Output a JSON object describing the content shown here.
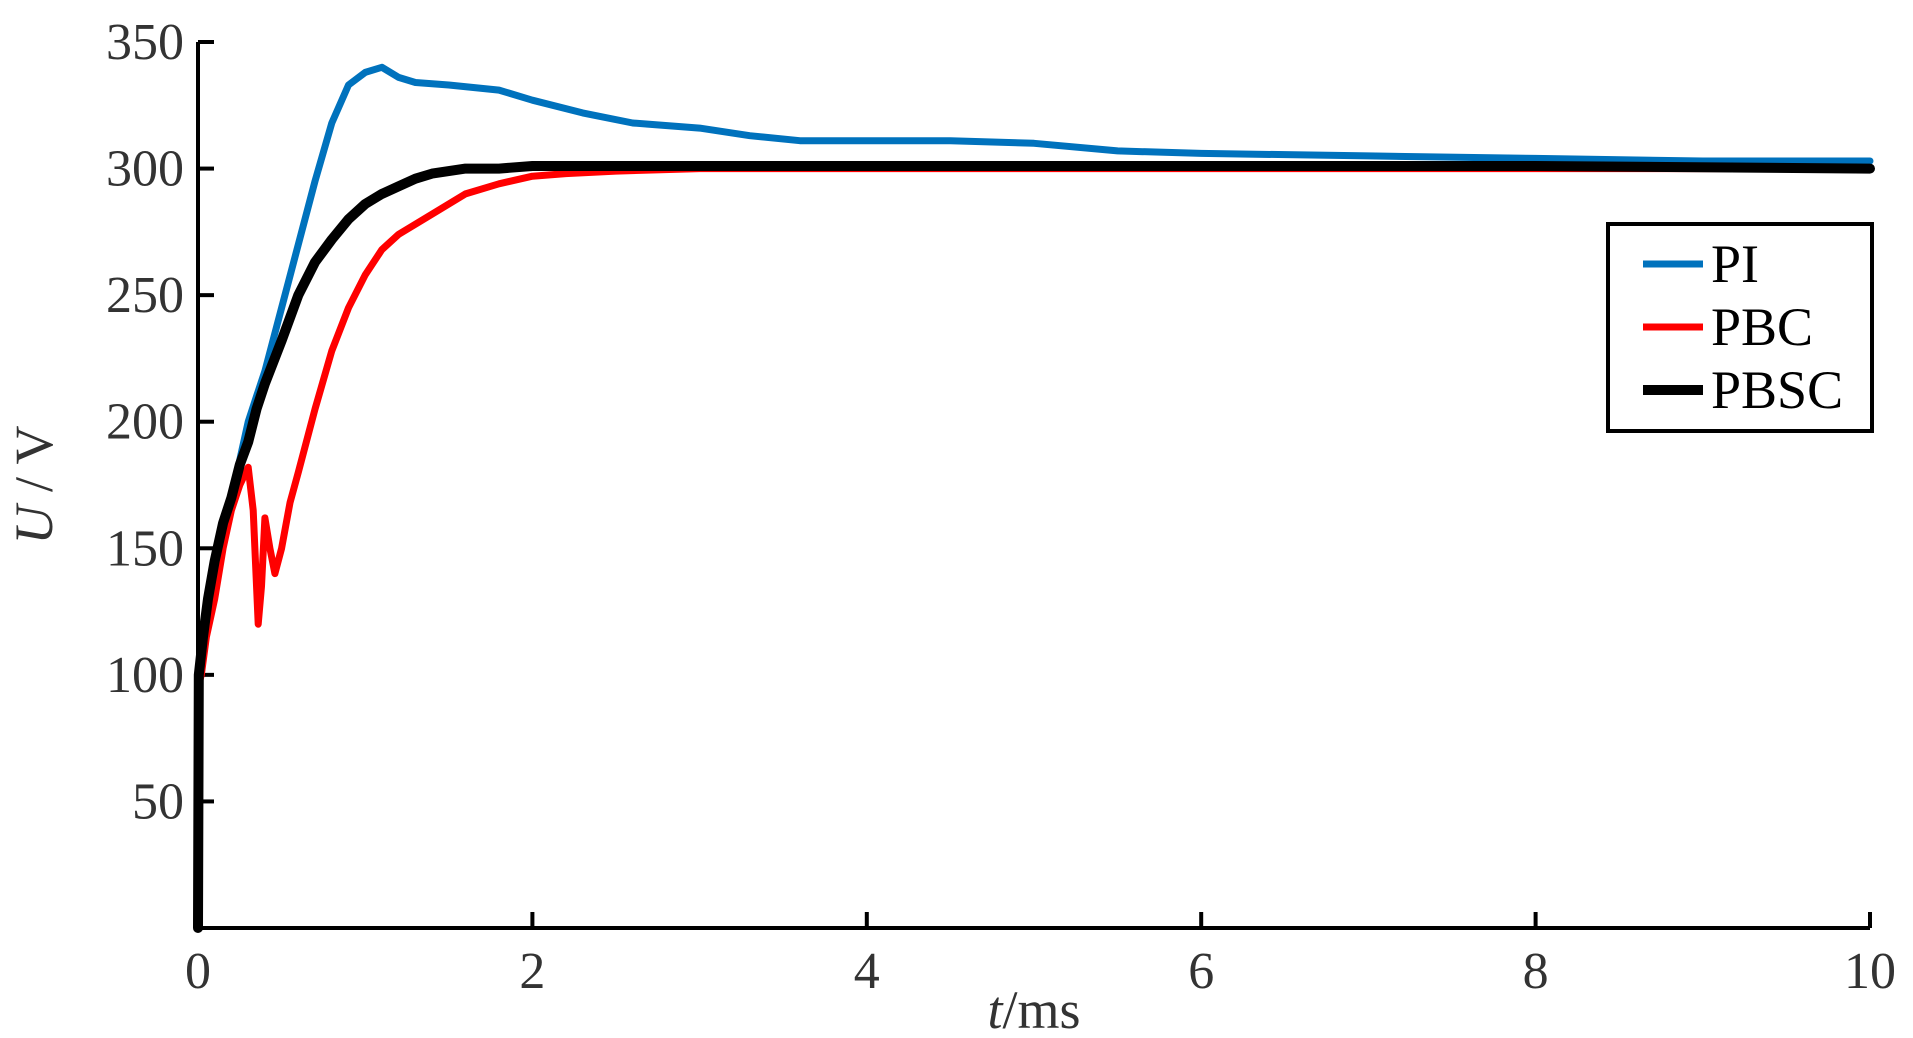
{
  "chart_data": {
    "type": "line",
    "title": "",
    "xlabel": {
      "var": "t",
      "unit": "/ms"
    },
    "ylabel": {
      "var": "U",
      "unit": " / V"
    },
    "xlim": [
      0,
      10
    ],
    "ylim": [
      0,
      350
    ],
    "xticks": [
      0,
      2,
      4,
      6,
      8,
      10
    ],
    "yticks": [
      50,
      100,
      150,
      200,
      250,
      300,
      350
    ],
    "grid": false,
    "legend_position": "right",
    "series": [
      {
        "name": "PI",
        "color": "#0072BD",
        "x": [
          0,
          0.02,
          0.05,
          0.1,
          0.15,
          0.2,
          0.25,
          0.3,
          0.35,
          0.4,
          0.5,
          0.6,
          0.7,
          0.8,
          0.9,
          1.0,
          1.1,
          1.2,
          1.3,
          1.5,
          1.8,
          2.0,
          2.3,
          2.6,
          3.0,
          3.3,
          3.6,
          4.0,
          4.5,
          5.0,
          5.5,
          6.0,
          7.0,
          8.0,
          9.0,
          10.0
        ],
        "y": [
          100,
          105,
          120,
          145,
          160,
          170,
          185,
          200,
          210,
          220,
          245,
          270,
          295,
          318,
          333,
          338,
          340,
          336,
          334,
          333,
          331,
          327,
          322,
          318,
          316,
          313,
          311,
          311,
          311,
          310,
          307,
          306,
          305,
          304,
          303,
          303
        ]
      },
      {
        "name": "PBC",
        "color": "#FF0000",
        "x": [
          0,
          0.02,
          0.05,
          0.1,
          0.15,
          0.2,
          0.25,
          0.3,
          0.33,
          0.36,
          0.38,
          0.4,
          0.43,
          0.46,
          0.5,
          0.55,
          0.6,
          0.7,
          0.8,
          0.9,
          1.0,
          1.1,
          1.2,
          1.4,
          1.6,
          1.8,
          2.0,
          2.2,
          2.5,
          3.0,
          3.5,
          4.0,
          5.0,
          6.0,
          8.0,
          10.0
        ],
        "y": [
          95,
          100,
          115,
          130,
          150,
          165,
          175,
          182,
          165,
          120,
          135,
          162,
          150,
          140,
          150,
          168,
          180,
          205,
          228,
          245,
          258,
          268,
          274,
          282,
          290,
          294,
          297,
          298,
          299,
          300,
          300,
          300,
          300,
          300,
          300,
          300
        ]
      },
      {
        "name": "PBSC",
        "color": "#000000",
        "x": [
          0,
          0.005,
          0.03,
          0.06,
          0.1,
          0.15,
          0.2,
          0.25,
          0.3,
          0.35,
          0.4,
          0.5,
          0.6,
          0.7,
          0.8,
          0.9,
          1.0,
          1.1,
          1.2,
          1.3,
          1.4,
          1.5,
          1.6,
          1.8,
          2.0,
          2.5,
          3.0,
          4.0,
          5.0,
          6.0,
          8.0,
          10.0
        ],
        "y": [
          0,
          100,
          115,
          130,
          145,
          160,
          170,
          183,
          192,
          205,
          215,
          232,
          250,
          263,
          272,
          280,
          286,
          290,
          293,
          296,
          298,
          299,
          300,
          300,
          301,
          301,
          301,
          301,
          301,
          301,
          301,
          300
        ]
      }
    ]
  }
}
